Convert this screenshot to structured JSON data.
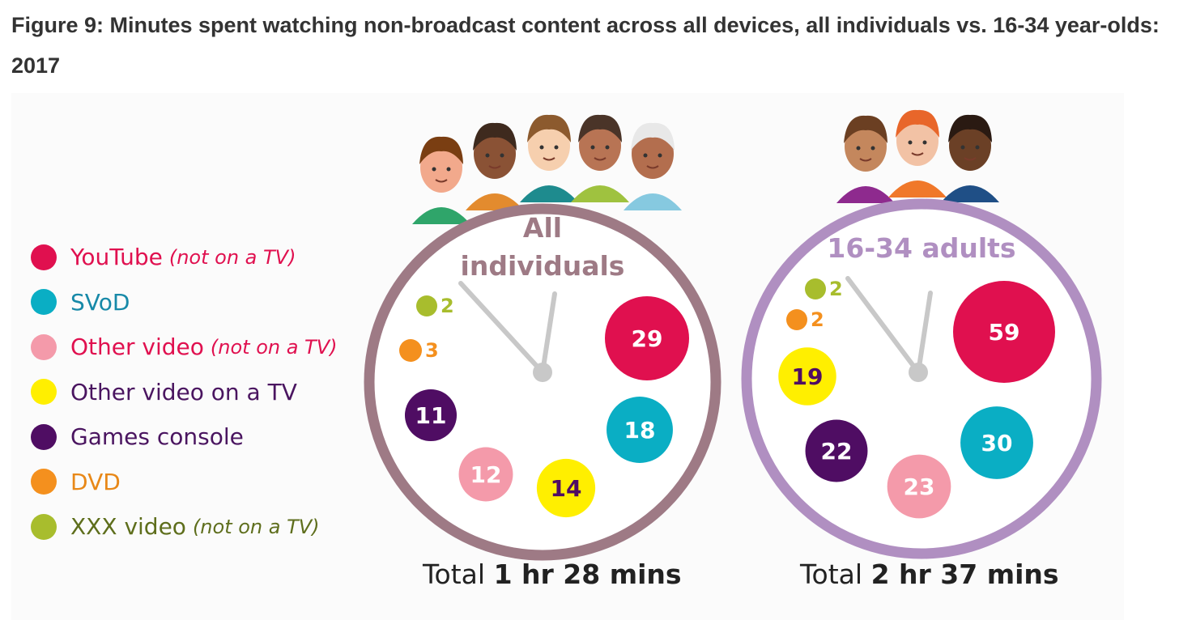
{
  "title": "Figure 9: Minutes spent watching non-broadcast content across all devices, all individuals vs. 16-34 year-olds: 2017",
  "legend": [
    {
      "label": "YouTube",
      "note": "(not on a TV)",
      "color": "#e0104f",
      "text_color": "#e0104f"
    },
    {
      "label": "SVoD",
      "note": "",
      "color": "#0aaec4",
      "text_color": "#1789a8"
    },
    {
      "label": "Other video",
      "note": "(not on a TV)",
      "color": "#f49aaa",
      "text_color": "#e0104f"
    },
    {
      "label": "Other video on a TV",
      "note": "",
      "color": "#ffef00",
      "text_color": "#4a1560"
    },
    {
      "label": "Games console",
      "note": "",
      "color": "#4f0d63",
      "text_color": "#4a1560"
    },
    {
      "label": "DVD",
      "note": "",
      "color": "#f4901e",
      "text_color": "#e88818"
    },
    {
      "label": "XXX video",
      "note": "(not on a TV)",
      "color": "#a8bd2d",
      "text_color": "#5e6e1c"
    }
  ],
  "chart_data": [
    {
      "type": "bubble",
      "title": "All individuals",
      "unit": "minutes",
      "ring_color": "#9e7a85",
      "title_color": "#9e7a85",
      "total": {
        "prefix": "Total",
        "value": "1 hr 28 mins"
      },
      "categories": [
        "YouTube",
        "SVoD",
        "Other video",
        "Other video on a TV",
        "Games console",
        "DVD",
        "XXX video"
      ],
      "values": [
        29,
        18,
        12,
        14,
        11,
        3,
        2
      ]
    },
    {
      "type": "bubble",
      "title": "16-34 adults",
      "unit": "minutes",
      "ring_color": "#b08fc1",
      "title_color": "#b08fc1",
      "total": {
        "prefix": "Total",
        "value": "2 hr 37 mins"
      },
      "categories": [
        "YouTube",
        "SVoD",
        "Other video",
        "Other video on a TV",
        "Games console",
        "DVD",
        "XXX video"
      ],
      "values": [
        59,
        30,
        23,
        19,
        22,
        2,
        2
      ]
    }
  ]
}
